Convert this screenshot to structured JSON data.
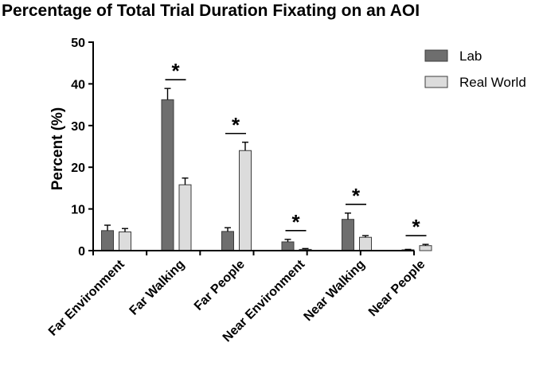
{
  "chart_data": {
    "type": "bar",
    "title": "Percentage of Total Trial Duration Fixating on an AOI",
    "xlabel": "",
    "ylabel": "Percent  (%)",
    "ylim": [
      0,
      50
    ],
    "yticks": [
      0,
      10,
      20,
      30,
      40,
      50
    ],
    "categories": [
      "Far Environment",
      "Far Walking",
      "Far People",
      "Near Environment",
      "Near Walking",
      "Near People"
    ],
    "series": [
      {
        "name": "Lab",
        "color": "#6e6e6e",
        "values": [
          4.8,
          36.2,
          4.6,
          2.1,
          7.5,
          0.2
        ],
        "errors": [
          1.3,
          2.7,
          0.9,
          0.6,
          1.5,
          0.1
        ]
      },
      {
        "name": "Real World",
        "color": "#dcdcdc",
        "values": [
          4.5,
          15.8,
          24.0,
          0.3,
          3.2,
          1.2
        ],
        "errors": [
          0.8,
          1.6,
          2.0,
          0.2,
          0.4,
          0.3
        ]
      }
    ],
    "significance": [
      {
        "category": "Far Walking",
        "label": "*"
      },
      {
        "category": "Far People",
        "label": "*"
      },
      {
        "category": "Near Environment",
        "label": "*"
      },
      {
        "category": "Near Walking",
        "label": "*"
      },
      {
        "category": "Near People",
        "label": "*"
      }
    ],
    "legend_position": "right",
    "grid": false
  }
}
